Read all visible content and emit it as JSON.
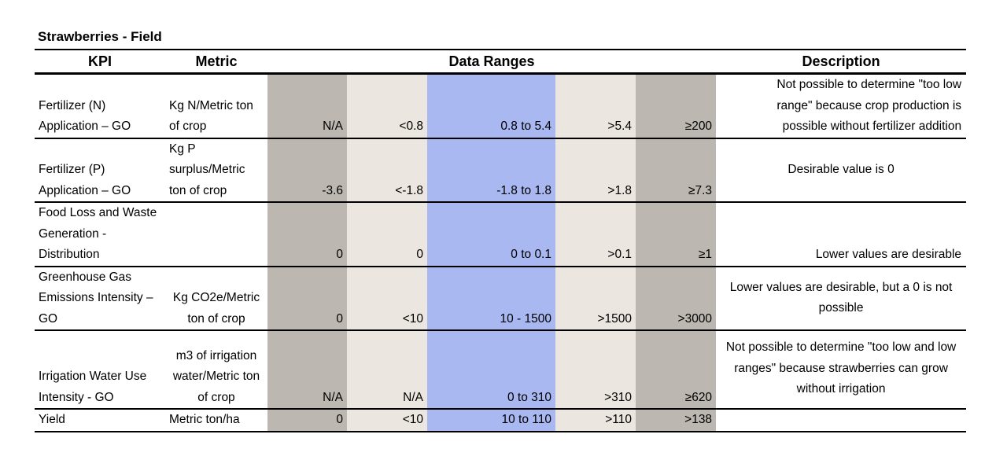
{
  "header": {
    "title": "Strawberries - Field",
    "columns": [
      "KPI",
      "Metric",
      "Data Ranges",
      "Description"
    ]
  },
  "table": {
    "rows": [
      {
        "kpi": "Fertilizer (N) Application – GO",
        "metric": "Kg N/Metric ton of crop",
        "ranges": [
          "N/A",
          "<0.8",
          "0.8 to 5.4",
          ">5.4",
          "≥200"
        ],
        "description": "Not possible to determine \"too low range\" because crop production is possible without fertilizer addition"
      },
      {
        "kpi": "Fertilizer (P) Application – GO",
        "metric": "Kg P surplus/Metric ton of crop",
        "ranges": [
          "-3.6",
          "<-1.8",
          "-1.8 to 1.8",
          ">1.8",
          "≥7.3"
        ],
        "description": "Desirable value is 0"
      },
      {
        "kpi": "Food Loss and Waste Generation - Distribution",
        "ranges": [
          "0",
          "0",
          "0 to 0.1",
          ">0.1",
          "≥1"
        ],
        "description": "Lower values are desirable"
      },
      {
        "kpi": "Greenhouse Gas Emissions Intensity – GO",
        "metric": "Kg CO2e/Metric ton of crop",
        "ranges": [
          "0",
          "<10",
          "10 - 1500",
          ">1500",
          ">3000"
        ],
        "description": "Lower values are desirable, but a 0 is not possible"
      },
      {
        "kpi": "Irrigation Water Use Intensity - GO",
        "metric": "m3 of irrigation water/Metric ton of crop",
        "ranges": [
          "N/A",
          "N/A",
          "0 to 310",
          ">310",
          "≥620"
        ],
        "description": "Not possible to determine \"too low and low ranges\" because strawberries can grow without irrigation"
      },
      {
        "kpi": "Yield",
        "metric": "Metric ton/ha",
        "ranges": [
          "0",
          "<10",
          "10 to 110",
          ">110",
          ">138"
        ]
      }
    ]
  }
}
